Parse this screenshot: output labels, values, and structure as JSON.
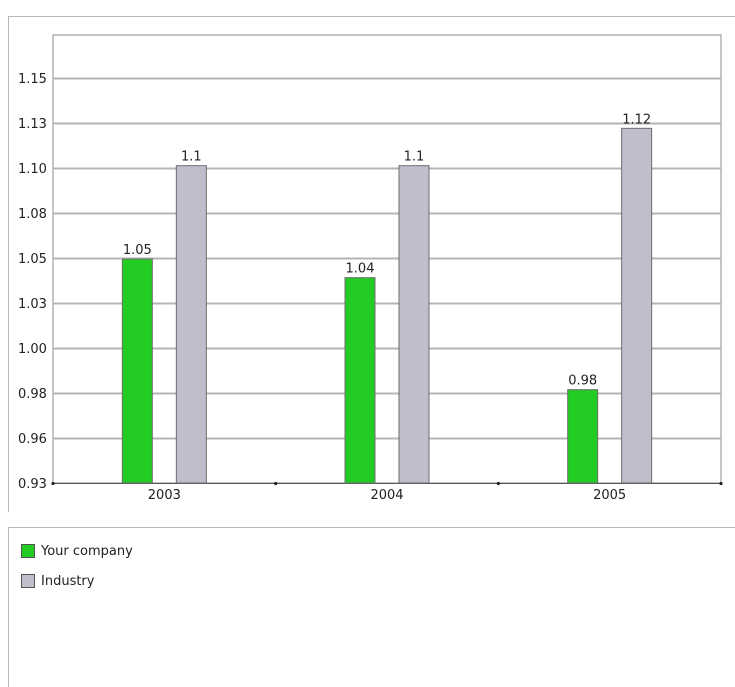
{
  "chart_data": {
    "type": "bar",
    "title": "",
    "xlabel": "",
    "ylabel": "",
    "categories": [
      "2003",
      "2004",
      "2005"
    ],
    "ylim": [
      0.93,
      1.17
    ],
    "y_ticks": [
      "0.93",
      "0.96",
      "0.98",
      "1.00",
      "1.03",
      "1.05",
      "1.08",
      "1.10",
      "1.13",
      "1.15"
    ],
    "grid": true,
    "legend_position": "bottom",
    "series": [
      {
        "name": "Your company",
        "values": [
          1.05,
          1.04,
          0.98
        ],
        "value_labels": [
          "1.05",
          "1.04",
          "0.98"
        ],
        "color": "#22cc22"
      },
      {
        "name": "Industry",
        "values": [
          1.1,
          1.1,
          1.12
        ],
        "value_labels": [
          "1.1",
          "1.1",
          "1.12"
        ],
        "color": "#bebecc"
      }
    ]
  }
}
